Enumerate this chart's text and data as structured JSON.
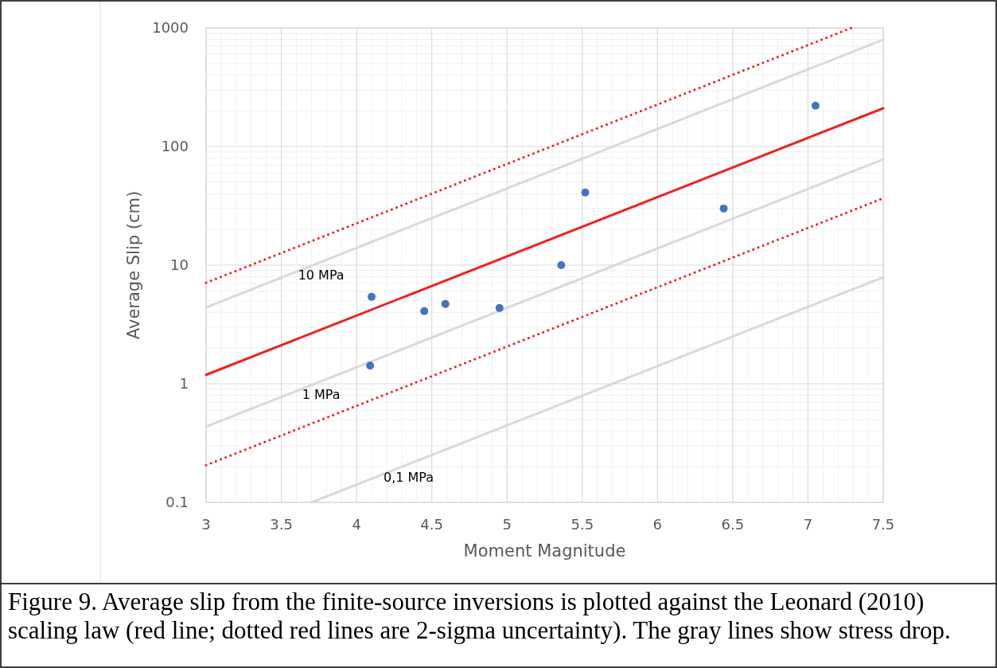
{
  "chart_data": {
    "type": "scatter",
    "xlabel": "Moment Magnitude",
    "ylabel": "Average Slip (cm)",
    "xlim": [
      3,
      7.5
    ],
    "xticks": [
      3,
      3.5,
      4,
      4.5,
      5,
      5.5,
      6,
      6.5,
      7,
      7.5
    ],
    "ylim": [
      0.1,
      1000
    ],
    "yticks": [
      0.1,
      1,
      10,
      100,
      1000
    ],
    "log": "y",
    "grid": true,
    "marker": "circle",
    "series": [
      {
        "type": "line",
        "marker": "none",
        "name": "10 MPa",
        "color": "#d9d9d9",
        "line_style": "solid",
        "x": [
          3,
          7.5
        ],
        "values": [
          4.4,
          795
        ]
      },
      {
        "type": "line",
        "marker": "none",
        "name": "1 MPa",
        "color": "#d9d9d9",
        "line_style": "solid",
        "x": [
          3,
          7.5
        ],
        "values": [
          0.435,
          78
        ]
      },
      {
        "type": "line",
        "marker": "none",
        "name": "0,1 MPa",
        "color": "#d9d9d9",
        "line_style": "solid",
        "x": [
          3.7,
          7.5
        ],
        "values": [
          0.1,
          7.9
        ]
      },
      {
        "type": "line",
        "marker": "none",
        "color": "#ee2222",
        "line_style": "dotted",
        "x": [
          3,
          7.29
        ],
        "values": [
          7.1,
          1000
        ]
      },
      {
        "type": "line",
        "marker": "none",
        "color": "#ee2222",
        "line_style": "dotted",
        "x": [
          3,
          7.5
        ],
        "values": [
          0.206,
          36.6
        ]
      },
      {
        "type": "line",
        "marker": "none",
        "color": "#ee2222",
        "line_style": "solid",
        "x": [
          3,
          7.5
        ],
        "values": [
          1.19,
          210
        ]
      },
      {
        "color": "#4472c4",
        "x": [
          4.1,
          4.09,
          4.45,
          4.59,
          4.95,
          5.36,
          5.52,
          6.44,
          7.05
        ],
        "values": [
          5.4,
          1.42,
          4.1,
          4.7,
          4.35,
          10,
          41,
          30,
          221
        ]
      }
    ],
    "annotations": [
      "Figure 9. Average slip from the finite-source inversions is plotted against the Leonard (2010) scaling law (red line; dotted red lines are 2-sigma uncertainty). The gray lines show stress drop."
    ]
  }
}
